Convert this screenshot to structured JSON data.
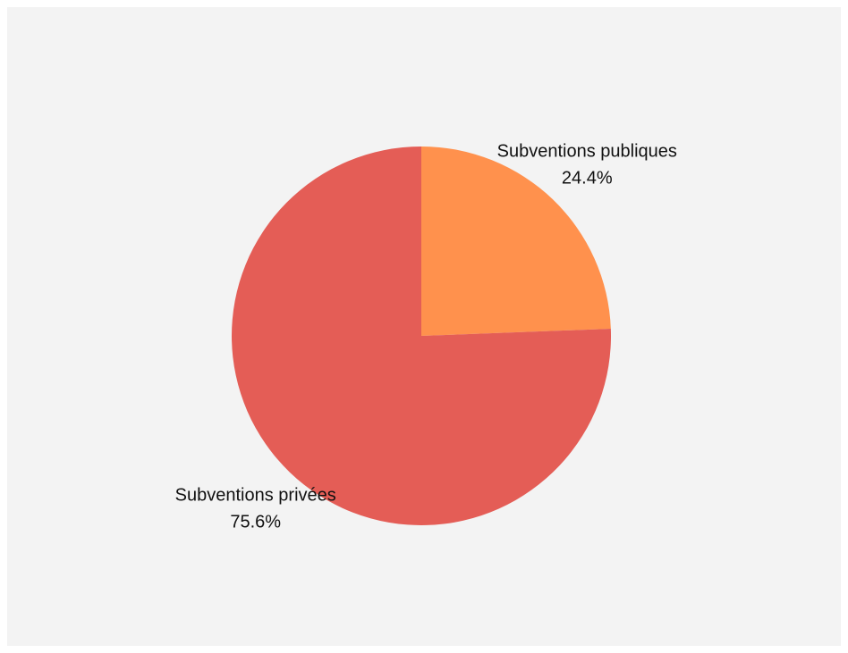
{
  "chart_data": {
    "type": "pie",
    "title": "",
    "start_angle_deg": 0,
    "direction": "clockwise",
    "slices": [
      {
        "label": "Subventions publiques",
        "value": 24.4,
        "value_label": "24.4%",
        "color": "#ff914d"
      },
      {
        "label": "Subventions privées",
        "value": 75.6,
        "value_label": "75.6%",
        "color": "#e45d56"
      }
    ],
    "background_color": "#f3f3f3"
  }
}
